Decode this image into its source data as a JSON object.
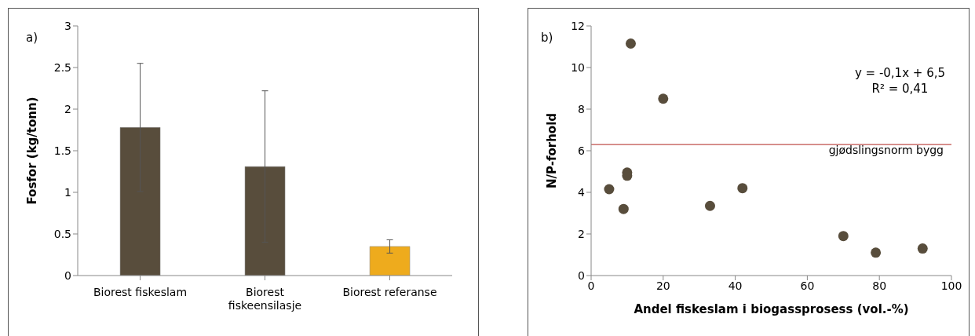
{
  "chart_data": [
    {
      "type": "bar",
      "ylabel": "Fosfor (kg/tonn)",
      "categories": [
        "Biorest fiskeslam",
        "Biorest fiskeensilasje",
        "Biorest referanse"
      ],
      "values": [
        1.78,
        1.31,
        0.35
      ],
      "colors": [
        "#584d3c",
        "#584d3c",
        "#eeab1d"
      ],
      "errors": [
        0.77,
        0.91,
        0.08
      ],
      "ylim": [
        0,
        3
      ],
      "yticks": [
        0,
        0.5,
        1,
        1.5,
        2,
        2.5,
        3
      ],
      "annotations": [
        "a)"
      ]
    },
    {
      "type": "scatter",
      "xlabel": "Andel fiskeslam i biogassprosess (vol.-%)",
      "ylabel": "N/P-forhold",
      "x": [
        5,
        9,
        10,
        10,
        11,
        20,
        33,
        42,
        70,
        79,
        92
      ],
      "values": [
        4.15,
        3.2,
        4.95,
        4.8,
        11.15,
        8.5,
        3.35,
        4.2,
        1.9,
        1.1,
        1.3
      ],
      "color": "#584d3c",
      "marker": "circle",
      "xlim": [
        0,
        100
      ],
      "xticks": [
        0,
        20,
        40,
        60,
        80,
        100
      ],
      "ylim": [
        0,
        12
      ],
      "yticks": [
        0,
        2,
        4,
        6,
        8,
        10,
        12
      ],
      "ref_lines": [
        {
          "axis": "y",
          "value": 6.3,
          "label": "gjødslingsnorm bygg",
          "color": "#c0504d"
        }
      ],
      "annotations": [
        "b)",
        "y = -0,1x + 6,5",
        "R² = 0,41"
      ]
    }
  ]
}
